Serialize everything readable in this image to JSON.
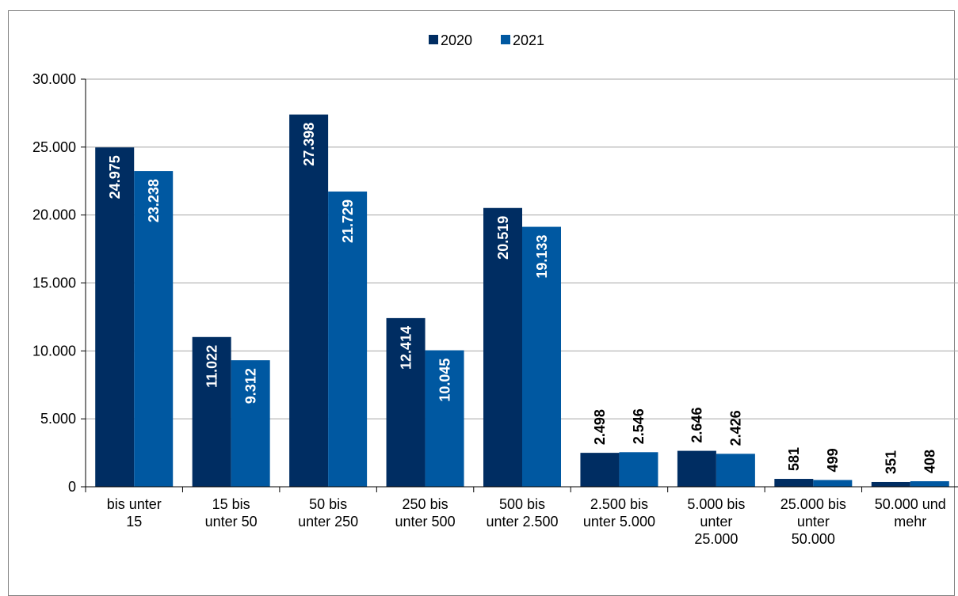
{
  "chart_data": {
    "type": "bar",
    "categories": [
      "bis unter 15",
      "15 bis unter 50",
      "50 bis unter 250",
      "250 bis unter 500",
      "500 bis unter 2.500",
      "2.500 bis unter 5.000",
      "5.000 bis unter 25.000",
      "25.000 bis unter 50.000",
      "50.000 und mehr"
    ],
    "category_lines": [
      [
        "bis unter",
        "15"
      ],
      [
        "15 bis",
        "unter 50"
      ],
      [
        "50 bis",
        "unter 250"
      ],
      [
        "250 bis",
        "unter 500"
      ],
      [
        "500 bis",
        "unter 2.500"
      ],
      [
        "2.500 bis",
        "unter 5.000"
      ],
      [
        "5.000 bis",
        "unter",
        "25.000"
      ],
      [
        "25.000 bis",
        "unter",
        "50.000"
      ],
      [
        "50.000 und",
        "mehr"
      ]
    ],
    "series": [
      {
        "name": "2020",
        "color": "#002D62",
        "values": [
          24975,
          11022,
          27398,
          12414,
          20519,
          2498,
          2646,
          581,
          351
        ],
        "labels": [
          "24.975",
          "11.022",
          "27.398",
          "12.414",
          "20.519",
          "2.498",
          "2.646",
          "581",
          "351"
        ]
      },
      {
        "name": "2021",
        "color": "#0058A1",
        "values": [
          23238,
          9312,
          21729,
          10045,
          19133,
          2546,
          2426,
          499,
          408
        ],
        "labels": [
          "23.238",
          "9.312",
          "21.729",
          "10.045",
          "19.133",
          "2.546",
          "2.426",
          "499",
          "408"
        ]
      }
    ],
    "ylim": [
      0,
      30000
    ],
    "yticks": [
      0,
      5000,
      10000,
      15000,
      20000,
      25000,
      30000
    ],
    "ytick_labels": [
      "0",
      "5.000",
      "10.000",
      "15.000",
      "20.000",
      "25.000",
      "30.000"
    ],
    "title": "",
    "xlabel": "",
    "ylabel": "",
    "grid": true,
    "legend_position": "top-center"
  }
}
